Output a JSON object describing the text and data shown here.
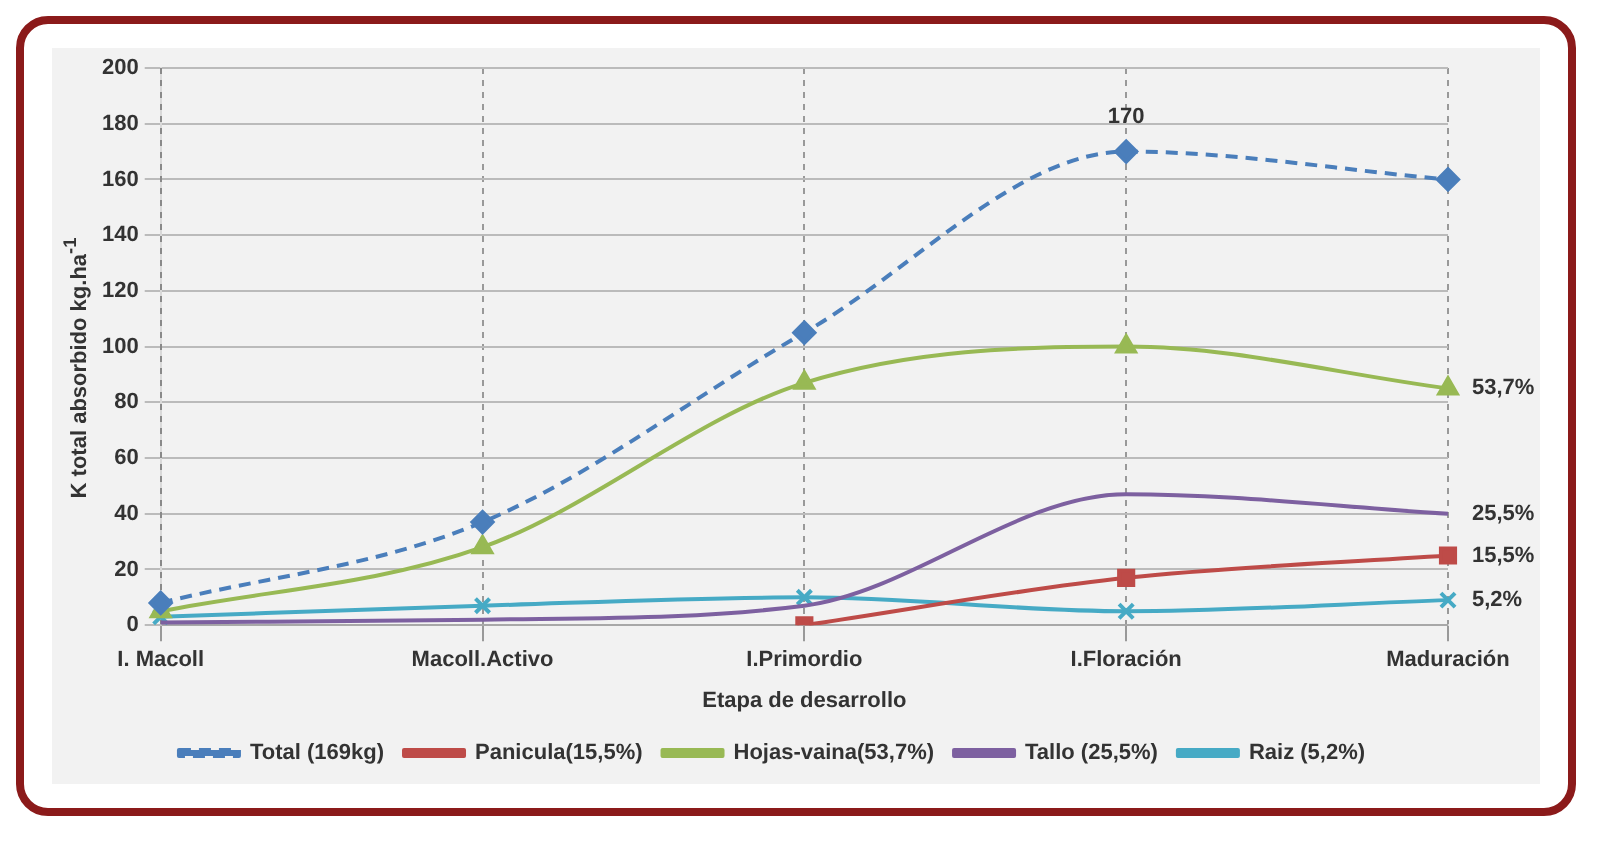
{
  "chart_data": {
    "type": "line",
    "xlabel": "Etapa de desarrollo",
    "ylabel": "K total absorbido kg.ha$^{-1}$",
    "categories": [
      "I. Macoll",
      "Macoll.Activo",
      "I.Primordio",
      "I.Floración",
      "Maduración"
    ],
    "series": [
      {
        "name": "Total (169kg)",
        "color": "#4a7ebb",
        "values": [
          8,
          37,
          105,
          170,
          160
        ],
        "marker": "diamond",
        "line_style": "dashed"
      },
      {
        "name": "Panicula(15,5%)",
        "color": "#be4b48",
        "values": [
          null,
          null,
          0,
          17,
          25
        ],
        "marker": "square",
        "line_style": "solid"
      },
      {
        "name": "Hojas-vaina(53,7%)",
        "color": "#98b954",
        "values": [
          5,
          28,
          87,
          100,
          85
        ],
        "marker": "triangle",
        "line_style": "solid"
      },
      {
        "name": "Tallo (25,5%)",
        "color": "#7d60a0",
        "values": [
          1,
          2,
          7,
          47,
          40
        ],
        "marker": "none",
        "line_style": "solid"
      },
      {
        "name": "Raiz (5,2%)",
        "color": "#46aac5",
        "values": [
          3,
          7,
          10,
          5,
          9
        ],
        "marker": "cross",
        "line_style": "solid"
      }
    ],
    "ylim": [
      0,
      200
    ],
    "yticks": [
      0,
      20,
      40,
      60,
      80,
      100,
      120,
      140,
      160,
      180,
      200
    ],
    "grid": true,
    "legend": "bottom",
    "annotations": [
      {
        "text": "170",
        "x": "I.Floración",
        "y": 170
      },
      {
        "text": "53,7%",
        "x": "Maduración",
        "y": 85
      },
      {
        "text": "25,5%",
        "x": "Maduración",
        "y": 40
      },
      {
        "text": "15,5%",
        "x": "Maduración",
        "y": 25
      },
      {
        "text": "5,2%",
        "x": "Maduración",
        "y": 9
      }
    ]
  }
}
